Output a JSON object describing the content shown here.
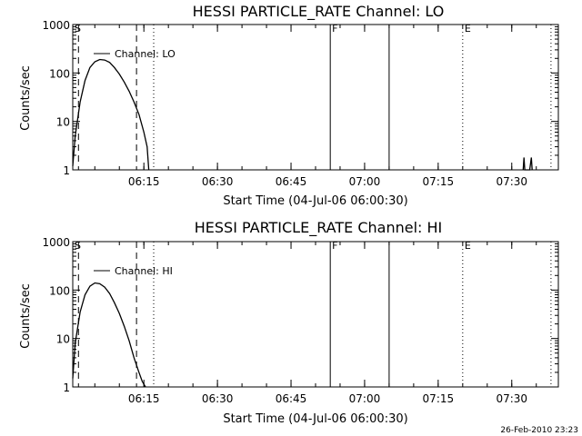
{
  "footer": {
    "date_stamp": "26-Feb-2010 23:23"
  },
  "chart_data": [
    {
      "type": "line",
      "title": "HESSI PARTICLE_RATE Channel: LO",
      "xlabel": "Start Time (04-Jul-06 06:00:30)",
      "ylabel": "Counts/sec",
      "yscale": "log",
      "ylim": [
        1,
        1000
      ],
      "xlim_minutes": [
        0,
        39.5
      ],
      "x_tick_labels": [
        "06:15",
        "06:30",
        "06:45",
        "07:00",
        "07:15",
        "07:30"
      ],
      "y_tick_labels": [
        "1",
        "10",
        "100",
        "1000"
      ],
      "legend": {
        "entries": [
          "Channel: LO"
        ],
        "placement": "top-left"
      },
      "series": [
        {
          "name": "Channel: LO",
          "x": [
            "06:00:30",
            "06:01",
            "06:02",
            "06:03",
            "06:04",
            "06:05",
            "06:06",
            "06:07",
            "06:08",
            "06:09",
            "06:10",
            "06:11",
            "06:12",
            "06:13",
            "06:14",
            "06:15",
            "06:15:40",
            "06:16",
            "07:32:20",
            "07:32:30",
            "07:32:40",
            "07:33:40",
            "07:34",
            "07:34:10"
          ],
          "y": [
            1.2,
            5,
            25,
            70,
            130,
            170,
            190,
            185,
            165,
            130,
            95,
            65,
            42,
            25,
            14,
            6,
            3,
            1,
            1,
            1.8,
            1,
            1,
            1.8,
            1
          ]
        }
      ],
      "markers": [
        {
          "label": "S",
          "time": "06:00:30",
          "style": "label"
        },
        {
          "label": "F",
          "time": "06:53:00",
          "style": "solid"
        },
        {
          "label": "",
          "time": "07:05:00",
          "style": "solid"
        },
        {
          "label": "E",
          "time": "07:20:00",
          "style": "dotted"
        },
        {
          "label": "",
          "time": "06:17:00",
          "style": "dotted"
        },
        {
          "label": "",
          "time": "07:38:00",
          "style": "dotted"
        },
        {
          "label": "",
          "time": "06:01:40",
          "style": "dashed"
        },
        {
          "label": "",
          "time": "06:13:30",
          "style": "dashed"
        }
      ]
    },
    {
      "type": "line",
      "title": "HESSI PARTICLE_RATE Channel: HI",
      "xlabel": "Start Time (04-Jul-06 06:00:30)",
      "ylabel": "Counts/sec",
      "yscale": "log",
      "ylim": [
        1,
        1000
      ],
      "xlim_minutes": [
        0,
        39.5
      ],
      "x_tick_labels": [
        "06:15",
        "06:30",
        "06:45",
        "07:00",
        "07:15",
        "07:30"
      ],
      "y_tick_labels": [
        "1",
        "10",
        "100",
        "1000"
      ],
      "legend": {
        "entries": [
          "Channel: HI"
        ],
        "placement": "top-left"
      },
      "series": [
        {
          "name": "Channel: HI",
          "x": [
            "06:00:30",
            "06:01",
            "06:02",
            "06:03",
            "06:04",
            "06:05",
            "06:06",
            "06:07",
            "06:08",
            "06:09",
            "06:10",
            "06:11",
            "06:12",
            "06:13",
            "06:14",
            "06:14:40",
            "06:15:20"
          ],
          "y": [
            1.5,
            8,
            35,
            80,
            120,
            140,
            135,
            115,
            85,
            55,
            33,
            18,
            9,
            4,
            2,
            1.3,
            1
          ]
        }
      ],
      "markers": [
        {
          "label": "S",
          "time": "06:00:30",
          "style": "label"
        },
        {
          "label": "F",
          "time": "06:53:00",
          "style": "solid"
        },
        {
          "label": "",
          "time": "07:05:00",
          "style": "solid"
        },
        {
          "label": "E",
          "time": "07:20:00",
          "style": "dotted"
        },
        {
          "label": "",
          "time": "06:17:00",
          "style": "dotted"
        },
        {
          "label": "",
          "time": "07:38:00",
          "style": "dotted"
        },
        {
          "label": "",
          "time": "06:01:40",
          "style": "dashed"
        },
        {
          "label": "",
          "time": "06:13:30",
          "style": "dashed"
        }
      ]
    }
  ]
}
